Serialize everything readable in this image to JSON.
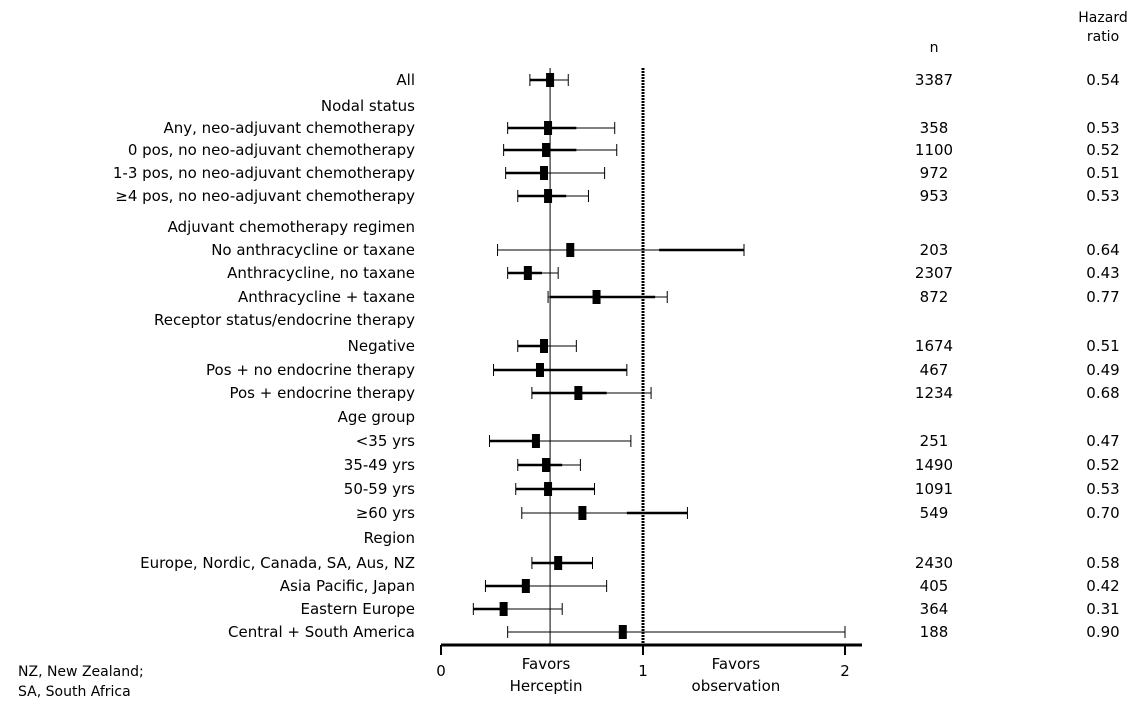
{
  "headers": {
    "n": "n",
    "hr_line1": "Hazard",
    "hr_line2": "ratio"
  },
  "footnote": {
    "line1": "NZ, New Zealand;",
    "line2": "SA, South Africa"
  },
  "chart_data": {
    "type": "forest",
    "xlim": [
      0,
      2
    ],
    "xticks": [
      {
        "value": 0,
        "label": "0"
      },
      {
        "value": 1,
        "label": "1"
      },
      {
        "value": 2,
        "label": "2"
      }
    ],
    "reference_line": 1,
    "vertical_line": 0.54,
    "axis_captions": [
      {
        "line1": "Favors",
        "line2": "Herceptin",
        "at": 0.52
      },
      {
        "line1": "Favors",
        "line2": "observation",
        "at": 1.46
      }
    ],
    "rows": [
      {
        "label": "All",
        "n": "3387",
        "hr": 0.54,
        "hr_text": "0.54",
        "ci": [
          0.44,
          0.63
        ],
        "thick": [
          0.44,
          0.54
        ]
      },
      {
        "label": "Nodal status"
      },
      {
        "label": "Any, neo-adjuvant chemotherapy",
        "n": "358",
        "hr": 0.53,
        "hr_text": "0.53",
        "ci": [
          0.33,
          0.86
        ],
        "thick": [
          0.33,
          0.67
        ]
      },
      {
        "label": "0 pos, no neo-adjuvant chemotherapy",
        "n": "1100",
        "hr": 0.52,
        "hr_text": "0.52",
        "ci": [
          0.31,
          0.87
        ],
        "thick": [
          0.31,
          0.67
        ]
      },
      {
        "label": "1-3 pos, no neo-adjuvant chemotherapy",
        "n": "972",
        "hr": 0.51,
        "hr_text": "0.51",
        "ci": [
          0.32,
          0.81
        ],
        "thick": [
          0.32,
          0.51
        ]
      },
      {
        "label": "≥4 pos, no neo-adjuvant chemotherapy",
        "n": "953",
        "hr": 0.53,
        "hr_text": "0.53",
        "ci": [
          0.38,
          0.73
        ],
        "thick": [
          0.38,
          0.62
        ]
      },
      {
        "label": "Adjuvant chemotherapy regimen"
      },
      {
        "label": "No anthracycline or taxane",
        "n": "203",
        "hr": 0.64,
        "hr_text": "0.64",
        "ci": [
          0.28,
          1.5
        ],
        "thick": [
          1.08,
          1.5
        ]
      },
      {
        "label": "Anthracycline, no taxane",
        "n": "2307",
        "hr": 0.43,
        "hr_text": "0.43",
        "ci": [
          0.33,
          0.58
        ],
        "thick": [
          0.33,
          0.5
        ]
      },
      {
        "label": "Anthracycline + taxane",
        "n": "872",
        "hr": 0.77,
        "hr_text": "0.77",
        "ci": [
          0.53,
          1.12
        ],
        "thick": [
          0.54,
          1.06
        ]
      },
      {
        "label": "Receptor status/endocrine therapy"
      },
      {
        "label": "Negative",
        "n": "1674",
        "hr": 0.51,
        "hr_text": "0.51",
        "ci": [
          0.38,
          0.67
        ],
        "thick": [
          0.38,
          0.51
        ]
      },
      {
        "label": "Pos + no endocrine therapy",
        "n": "467",
        "hr": 0.49,
        "hr_text": "0.49",
        "ci": [
          0.26,
          0.92
        ],
        "thick": [
          0.26,
          0.92
        ]
      },
      {
        "label": "Pos + endocrine therapy",
        "n": "1234",
        "hr": 0.68,
        "hr_text": "0.68",
        "ci": [
          0.45,
          1.04
        ],
        "thick": [
          0.45,
          0.82
        ]
      },
      {
        "label": "Age group"
      },
      {
        "label": "<35 yrs",
        "n": "251",
        "hr": 0.47,
        "hr_text": "0.47",
        "ci": [
          0.24,
          0.94
        ],
        "thick": [
          0.24,
          0.47
        ]
      },
      {
        "label": "35-49 yrs",
        "n": "1490",
        "hr": 0.52,
        "hr_text": "0.52",
        "ci": [
          0.38,
          0.69
        ],
        "thick": [
          0.38,
          0.6
        ]
      },
      {
        "label": "50-59 yrs",
        "n": "1091",
        "hr": 0.53,
        "hr_text": "0.53",
        "ci": [
          0.37,
          0.76
        ],
        "thick": [
          0.37,
          0.76
        ]
      },
      {
        "label": "≥60 yrs",
        "n": "549",
        "hr": 0.7,
        "hr_text": "0.70",
        "ci": [
          0.4,
          1.22
        ],
        "thick": [
          0.92,
          1.22
        ]
      },
      {
        "label": "Region"
      },
      {
        "label": "Europe, Nordic, Canada, SA, Aus, NZ",
        "n": "2430",
        "hr": 0.58,
        "hr_text": "0.58",
        "ci": [
          0.45,
          0.75
        ],
        "thick": [
          0.45,
          0.75
        ]
      },
      {
        "label": "Asia Pacific, Japan",
        "n": "405",
        "hr": 0.42,
        "hr_text": "0.42",
        "ci": [
          0.22,
          0.82
        ],
        "thick": [
          0.22,
          0.42
        ]
      },
      {
        "label": "Eastern Europe",
        "n": "364",
        "hr": 0.31,
        "hr_text": "0.31",
        "ci": [
          0.16,
          0.6
        ],
        "thick": [
          0.16,
          0.31
        ]
      },
      {
        "label": "Central + South America",
        "n": "188",
        "hr": 0.9,
        "hr_text": "0.90",
        "ci": [
          0.33,
          2.0
        ],
        "thick": [
          0.9,
          0.9
        ]
      }
    ]
  }
}
